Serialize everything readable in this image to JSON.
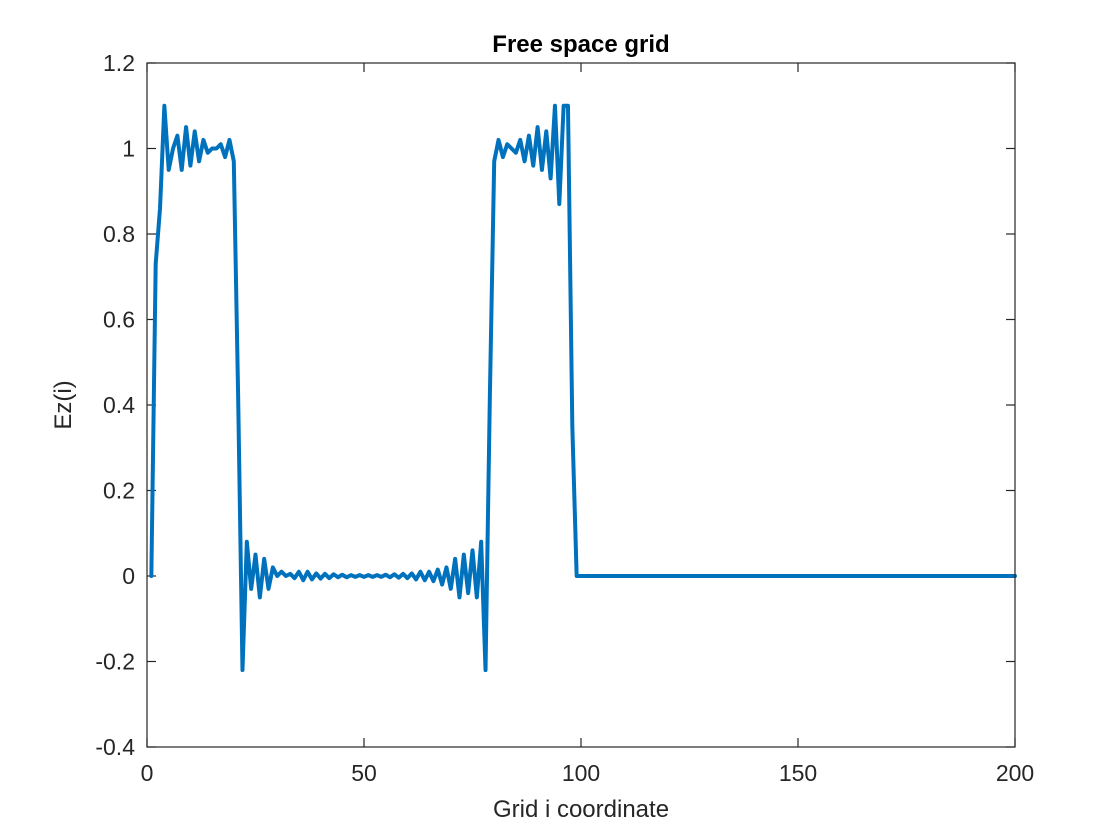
{
  "chart_data": {
    "type": "line",
    "title": "Free space grid",
    "xlabel": "Grid i coordinate",
    "ylabel": "Ez(i)",
    "xlim": [
      0,
      200
    ],
    "ylim": [
      -0.4,
      1.2
    ],
    "xticks": [
      0,
      50,
      100,
      150,
      200
    ],
    "yticks": [
      -0.4,
      -0.2,
      0,
      0.2,
      0.4,
      0.6,
      0.8,
      1,
      1.2
    ],
    "xtick_labels": [
      "0",
      "50",
      "100",
      "150",
      "200"
    ],
    "ytick_labels": [
      "-0.4",
      "-0.2",
      "0",
      "0.2",
      "0.4",
      "0.6",
      "0.8",
      "1",
      "1.2"
    ],
    "grid": false,
    "line_color": "#0072BD",
    "series": [
      {
        "x": [
          1,
          2,
          3,
          4,
          5,
          6,
          7,
          8,
          9,
          10,
          11,
          12,
          13,
          14,
          15,
          16,
          17,
          18,
          19,
          20,
          21,
          22,
          23,
          24,
          25,
          26,
          27,
          28,
          29,
          30,
          31,
          32,
          33,
          34,
          35,
          36,
          37,
          38,
          39,
          40,
          41,
          42,
          43,
          44,
          45,
          46,
          47,
          48,
          49,
          50,
          51,
          52,
          53,
          54,
          55,
          56,
          57,
          58,
          59,
          60,
          61,
          62,
          63,
          64,
          65,
          66,
          67,
          68,
          69,
          70,
          71,
          72,
          73,
          74,
          75,
          76,
          77,
          78,
          79,
          80,
          81,
          82,
          83,
          84,
          85,
          86,
          87,
          88,
          89,
          90,
          91,
          92,
          93,
          94,
          95,
          96,
          97,
          98,
          99,
          100,
          101,
          102,
          200
        ],
        "y": [
          0,
          0.73,
          0.86,
          1.1,
          0.95,
          1.0,
          1.03,
          0.95,
          1.05,
          0.96,
          1.04,
          0.97,
          1.02,
          0.99,
          1.0,
          1.0,
          1.01,
          0.98,
          1.02,
          0.97,
          0.42,
          -0.22,
          0.08,
          -0.03,
          0.05,
          -0.05,
          0.04,
          -0.03,
          0.02,
          0.0,
          0.01,
          0.0,
          0.005,
          -0.005,
          0.01,
          -0.01,
          0.01,
          -0.008,
          0.006,
          -0.006,
          0.005,
          -0.005,
          0.004,
          -0.003,
          0.003,
          -0.003,
          0.002,
          -0.002,
          0.002,
          -0.002,
          0.002,
          -0.002,
          0.002,
          -0.002,
          0.003,
          -0.003,
          0.004,
          -0.004,
          0.005,
          -0.005,
          0.006,
          -0.008,
          0.01,
          -0.01,
          0.01,
          -0.012,
          0.015,
          -0.02,
          0.02,
          -0.03,
          0.04,
          -0.05,
          0.05,
          -0.04,
          0.06,
          -0.05,
          0.08,
          -0.22,
          0.42,
          0.97,
          1.02,
          0.98,
          1.01,
          1.0,
          0.99,
          1.02,
          0.97,
          1.03,
          0.96,
          1.05,
          0.95,
          1.04,
          0.93,
          1.1,
          0.87,
          1.1,
          1.1,
          0.35,
          0.0,
          0.0,
          0.0,
          0.0,
          0.0
        ]
      }
    ]
  }
}
